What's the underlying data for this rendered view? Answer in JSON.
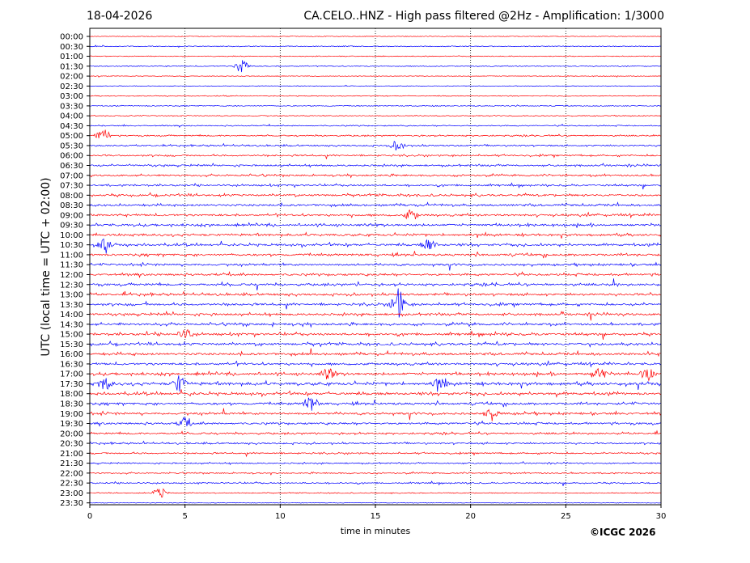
{
  "chart_data": {
    "type": "line",
    "title_date": "18-04-2026",
    "title_station": "CA.CELO..HNZ - High pass filtered @2Hz - Amplification: 1/3000",
    "xlabel": "time in minutes",
    "ylabel": "UTC (local time = UTC + 02:00)",
    "xlim": [
      0,
      30
    ],
    "x_ticks": [
      0,
      5,
      10,
      15,
      20,
      25,
      30
    ],
    "grid": "vertical dotted at 5-minute intervals",
    "row_labels": [
      "00:00",
      "00:30",
      "01:00",
      "01:30",
      "02:00",
      "02:30",
      "03:00",
      "03:30",
      "04:00",
      "04:30",
      "05:00",
      "05:30",
      "06:00",
      "06:30",
      "07:00",
      "07:30",
      "08:00",
      "08:30",
      "09:00",
      "09:30",
      "10:00",
      "10:30",
      "11:00",
      "11:30",
      "12:00",
      "12:30",
      "13:00",
      "13:30",
      "14:00",
      "14:30",
      "15:00",
      "15:30",
      "16:00",
      "16:30",
      "17:00",
      "17:30",
      "18:00",
      "18:30",
      "19:00",
      "19:30",
      "20:00",
      "20:30",
      "21:00",
      "21:30",
      "22:00",
      "22:30",
      "23:00",
      "23:30"
    ],
    "trace_colors": [
      "#ff0000",
      "#0000ff"
    ],
    "activity": [
      0.05,
      0.12,
      0.1,
      0.15,
      0.05,
      0.05,
      0.12,
      0.15,
      0.15,
      0.2,
      0.3,
      0.35,
      0.4,
      0.45,
      0.45,
      0.45,
      0.55,
      0.55,
      0.55,
      0.6,
      0.6,
      0.6,
      0.6,
      0.55,
      0.55,
      0.6,
      0.6,
      0.6,
      0.6,
      0.6,
      0.65,
      0.65,
      0.65,
      0.6,
      0.7,
      0.8,
      0.7,
      0.6,
      0.6,
      0.5,
      0.45,
      0.4,
      0.35,
      0.3,
      0.3,
      0.3,
      0.15,
      0.03
    ],
    "events": [
      {
        "row": 3,
        "x": 8.0,
        "amp": 2.0
      },
      {
        "row": 10,
        "x": 0.7,
        "amp": 1.8
      },
      {
        "row": 11,
        "x": 16.2,
        "amp": 1.4
      },
      {
        "row": 18,
        "x": 16.9,
        "amp": 1.5
      },
      {
        "row": 21,
        "x": 0.8,
        "amp": 1.5
      },
      {
        "row": 21,
        "x": 17.8,
        "amp": 1.8
      },
      {
        "row": 27,
        "x": 16.2,
        "amp": 4.0
      },
      {
        "row": 30,
        "x": 5.0,
        "amp": 1.3
      },
      {
        "row": 34,
        "x": 12.5,
        "amp": 1.5
      },
      {
        "row": 34,
        "x": 26.8,
        "amp": 1.6
      },
      {
        "row": 34,
        "x": 29.3,
        "amp": 1.8
      },
      {
        "row": 35,
        "x": 0.8,
        "amp": 1.6
      },
      {
        "row": 35,
        "x": 4.7,
        "amp": 2.0
      },
      {
        "row": 35,
        "x": 18.4,
        "amp": 1.6
      },
      {
        "row": 37,
        "x": 11.6,
        "amp": 2.2
      },
      {
        "row": 38,
        "x": 21.1,
        "amp": 1.6
      },
      {
        "row": 39,
        "x": 5.0,
        "amp": 1.3
      },
      {
        "row": 46,
        "x": 3.7,
        "amp": 1.4
      }
    ]
  },
  "copyright": "©ICGC 2026"
}
